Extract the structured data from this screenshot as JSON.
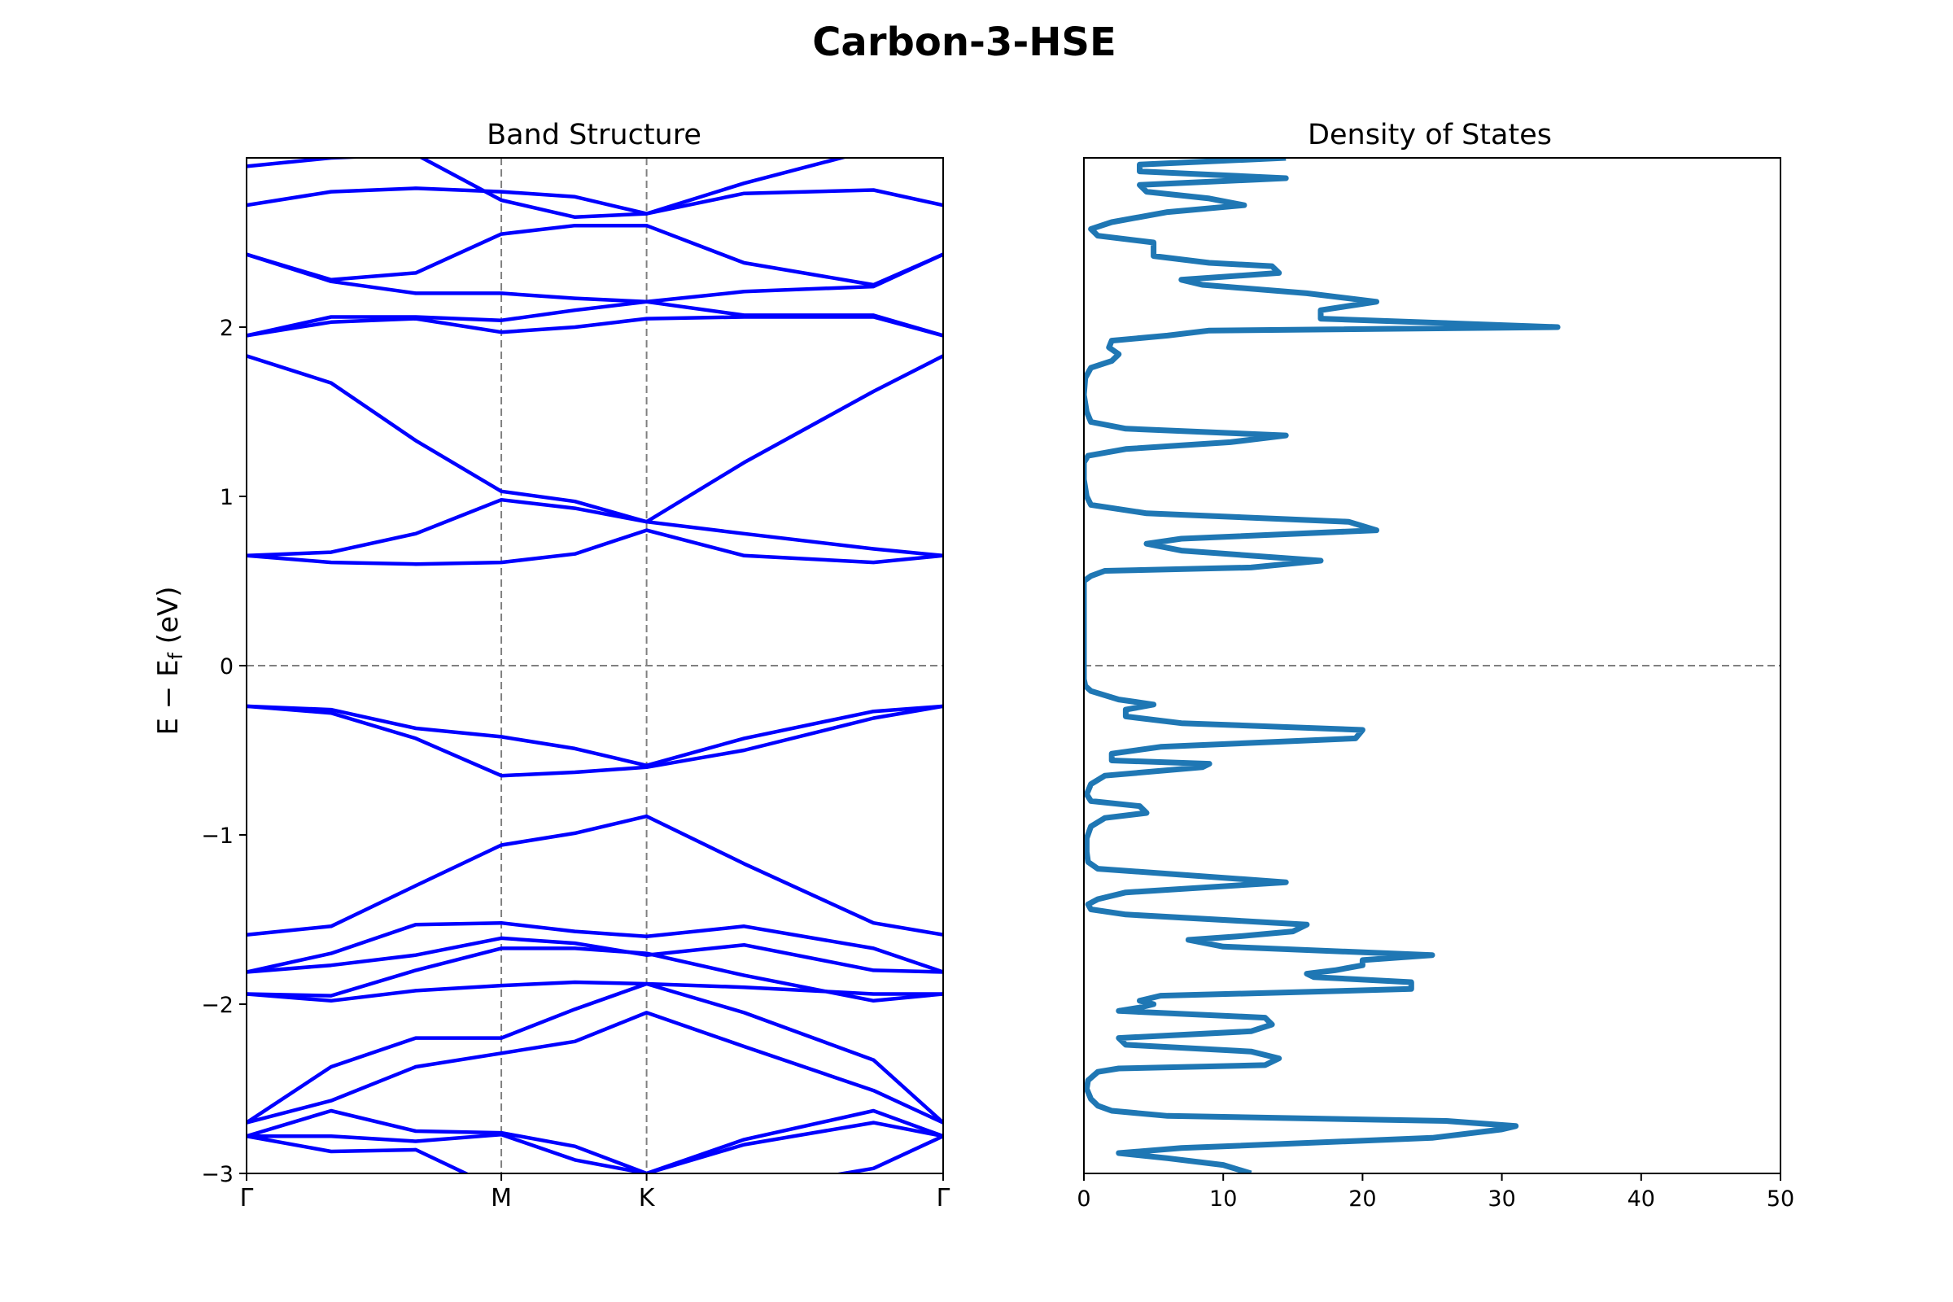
{
  "figure": {
    "title": "Carbon-3-HSE",
    "ylabel_main": "E − E",
    "ylabel_sub": "f",
    "ylabel_unit": " (eV)"
  },
  "chart_data": [
    {
      "type": "line",
      "title": "Band Structure",
      "ylim": [
        -3,
        3
      ],
      "yticks": [
        -3,
        -2,
        -1,
        0,
        1,
        2
      ],
      "ytick_labels": [
        "−3",
        "−2",
        "−1",
        "0",
        "1",
        "2"
      ],
      "xticks": [
        0,
        2.56,
        4.02,
        7.0
      ],
      "xtick_labels": [
        "Γ",
        "M",
        "K",
        "Γ"
      ],
      "kpoints": [
        0,
        0.85,
        1.7,
        2.56,
        3.3,
        4.02,
        5.0,
        6.3,
        7.0
      ],
      "fermi_level": 0,
      "line_color": "#0000ff",
      "guide_color": "#808080",
      "bands": [
        [
          -3.3,
          -3.2,
          -3.1,
          -3.05,
          -3.05,
          -3.0,
          -3.2,
          -3.3,
          -3.35
        ],
        [
          -2.78,
          -2.87,
          -2.86,
          -3.1,
          -3.2,
          -3.3,
          -3.1,
          -2.97,
          -2.78
        ],
        [
          -2.78,
          -2.78,
          -2.81,
          -2.77,
          -2.92,
          -3.0,
          -2.83,
          -2.7,
          -2.78
        ],
        [
          -2.78,
          -2.63,
          -2.75,
          -2.76,
          -2.84,
          -3.0,
          -2.8,
          -2.63,
          -2.78
        ],
        [
          -2.7,
          -2.57,
          -2.37,
          -2.29,
          -2.22,
          -2.05,
          -2.25,
          -2.51,
          -2.7
        ],
        [
          -2.7,
          -2.37,
          -2.2,
          -2.2,
          -2.03,
          -1.88,
          -2.05,
          -2.33,
          -2.7
        ],
        [
          -1.94,
          -1.98,
          -1.92,
          -1.89,
          -1.87,
          -1.88,
          -1.9,
          -1.94,
          -1.94
        ],
        [
          -1.94,
          -1.95,
          -1.8,
          -1.67,
          -1.67,
          -1.7,
          -1.83,
          -1.98,
          -1.94
        ],
        [
          -1.81,
          -1.77,
          -1.71,
          -1.61,
          -1.64,
          -1.71,
          -1.65,
          -1.8,
          -1.81
        ],
        [
          -1.81,
          -1.7,
          -1.53,
          -1.52,
          -1.57,
          -1.6,
          -1.54,
          -1.67,
          -1.81
        ],
        [
          -1.59,
          -1.54,
          -1.3,
          -1.06,
          -0.99,
          -0.89,
          -1.17,
          -1.52,
          -1.59
        ],
        [
          -0.24,
          -0.28,
          -0.43,
          -0.65,
          -0.63,
          -0.6,
          -0.5,
          -0.31,
          -0.24
        ],
        [
          -0.24,
          -0.26,
          -0.37,
          -0.42,
          -0.49,
          -0.59,
          -0.43,
          -0.27,
          -0.24
        ],
        [
          0.65,
          0.61,
          0.6,
          0.61,
          0.66,
          0.8,
          0.65,
          0.61,
          0.65
        ],
        [
          0.65,
          0.67,
          0.78,
          0.98,
          0.93,
          0.85,
          0.78,
          0.69,
          0.65
        ],
        [
          1.83,
          1.67,
          1.33,
          1.03,
          0.97,
          0.85,
          1.2,
          1.62,
          1.83
        ],
        [
          1.95,
          2.03,
          2.05,
          1.97,
          2.0,
          2.05,
          2.06,
          2.06,
          1.95
        ],
        [
          1.95,
          2.06,
          2.06,
          2.04,
          2.1,
          2.15,
          2.07,
          2.07,
          1.95
        ],
        [
          2.43,
          2.27,
          2.2,
          2.2,
          2.17,
          2.15,
          2.21,
          2.24,
          2.43
        ],
        [
          2.43,
          2.28,
          2.32,
          2.55,
          2.6,
          2.6,
          2.38,
          2.25,
          2.43
        ],
        [
          2.72,
          2.8,
          2.82,
          2.8,
          2.77,
          2.67,
          2.79,
          2.81,
          2.72
        ],
        [
          2.95,
          3.0,
          3.02,
          2.75,
          2.65,
          2.67,
          2.85,
          3.05,
          3.2
        ]
      ]
    },
    {
      "type": "line",
      "title": "Density of States",
      "xlim": [
        0,
        50
      ],
      "xticks": [
        0,
        10,
        20,
        30,
        40,
        50
      ],
      "xtick_labels": [
        "0",
        "10",
        "20",
        "30",
        "40",
        "50"
      ],
      "ylim": [
        -3,
        3
      ],
      "fermi_level": 0,
      "line_color": "#1f77b4",
      "guide_color": "#808080",
      "dos": {
        "energy": [
          -3.0,
          -2.95,
          -2.91,
          -2.88,
          -2.85,
          -2.79,
          -2.74,
          -2.72,
          -2.69,
          -2.66,
          -2.63,
          -2.6,
          -2.56,
          -2.5,
          -2.45,
          -2.4,
          -2.38,
          -2.36,
          -2.32,
          -2.28,
          -2.24,
          -2.2,
          -2.16,
          -2.12,
          -2.08,
          -2.04,
          -2.02,
          -2.0,
          -1.98,
          -1.95,
          -1.93,
          -1.91,
          -1.87,
          -1.84,
          -1.82,
          -1.8,
          -1.77,
          -1.74,
          -1.71,
          -1.66,
          -1.62,
          -1.6,
          -1.57,
          -1.53,
          -1.47,
          -1.44,
          -1.41,
          -1.38,
          -1.34,
          -1.28,
          -1.2,
          -1.16,
          -1.1,
          -1.02,
          -0.95,
          -0.9,
          -0.87,
          -0.83,
          -0.8,
          -0.76,
          -0.7,
          -0.65,
          -0.6,
          -0.58,
          -0.56,
          -0.52,
          -0.48,
          -0.43,
          -0.38,
          -0.34,
          -0.3,
          -0.26,
          -0.23,
          -0.2,
          -0.15,
          -0.12,
          -0.08,
          -0.04,
          0.0,
          0.1,
          0.3,
          0.5,
          0.53,
          0.56,
          0.58,
          0.62,
          0.68,
          0.72,
          0.75,
          0.8,
          0.85,
          0.9,
          0.95,
          1.0,
          1.1,
          1.2,
          1.24,
          1.28,
          1.32,
          1.36,
          1.4,
          1.44,
          1.5,
          1.6,
          1.7,
          1.76,
          1.8,
          1.84,
          1.88,
          1.92,
          1.95,
          1.98,
          2.0,
          2.05,
          2.1,
          2.15,
          2.2,
          2.25,
          2.28,
          2.32,
          2.36,
          2.38,
          2.42,
          2.46,
          2.5,
          2.54,
          2.58,
          2.62,
          2.68,
          2.72,
          2.76,
          2.8,
          2.84,
          2.88,
          2.92,
          2.96,
          3.0
        ],
        "values": [
          12.0,
          10.0,
          6.0,
          2.5,
          7.0,
          25.0,
          30.0,
          31.0,
          26.0,
          6.0,
          2.0,
          1.0,
          0.5,
          0.2,
          0.3,
          1.0,
          2.5,
          13.0,
          14.0,
          12.0,
          3.0,
          2.5,
          12.0,
          13.5,
          13.0,
          2.5,
          4.0,
          5.0,
          4.0,
          5.5,
          15.0,
          23.5,
          23.5,
          16.5,
          16.0,
          18.0,
          20.0,
          20.0,
          25.0,
          10.0,
          7.5,
          11.0,
          15.0,
          16.0,
          3.0,
          0.5,
          0.3,
          1.0,
          3.0,
          14.5,
          1.0,
          0.3,
          0.2,
          0.2,
          0.5,
          1.5,
          4.5,
          4.0,
          0.5,
          0.2,
          0.5,
          1.5,
          8.5,
          9.0,
          2.0,
          2.0,
          5.5,
          19.5,
          20.0,
          7.0,
          3.0,
          3.0,
          5.0,
          2.5,
          0.5,
          0.1,
          0.0,
          0.0,
          0.0,
          0.0,
          0.0,
          0.0,
          0.5,
          1.5,
          12.0,
          17.0,
          7.0,
          4.5,
          7.0,
          21.0,
          19.0,
          4.5,
          0.5,
          0.2,
          0.0,
          0.0,
          0.3,
          3.0,
          10.5,
          14.5,
          3.0,
          0.5,
          0.2,
          0.0,
          0.1,
          0.5,
          2.0,
          2.5,
          1.8,
          2.0,
          6.0,
          9.0,
          34.0,
          17.0,
          17.0,
          21.0,
          16.0,
          8.5,
          7.0,
          14.0,
          13.5,
          9.0,
          5.0,
          5.0,
          5.0,
          1.0,
          0.5,
          2.0,
          6.0,
          11.5,
          9.0,
          4.5,
          4.0,
          14.5,
          4.0,
          4.0,
          14.5
        ]
      }
    }
  ]
}
